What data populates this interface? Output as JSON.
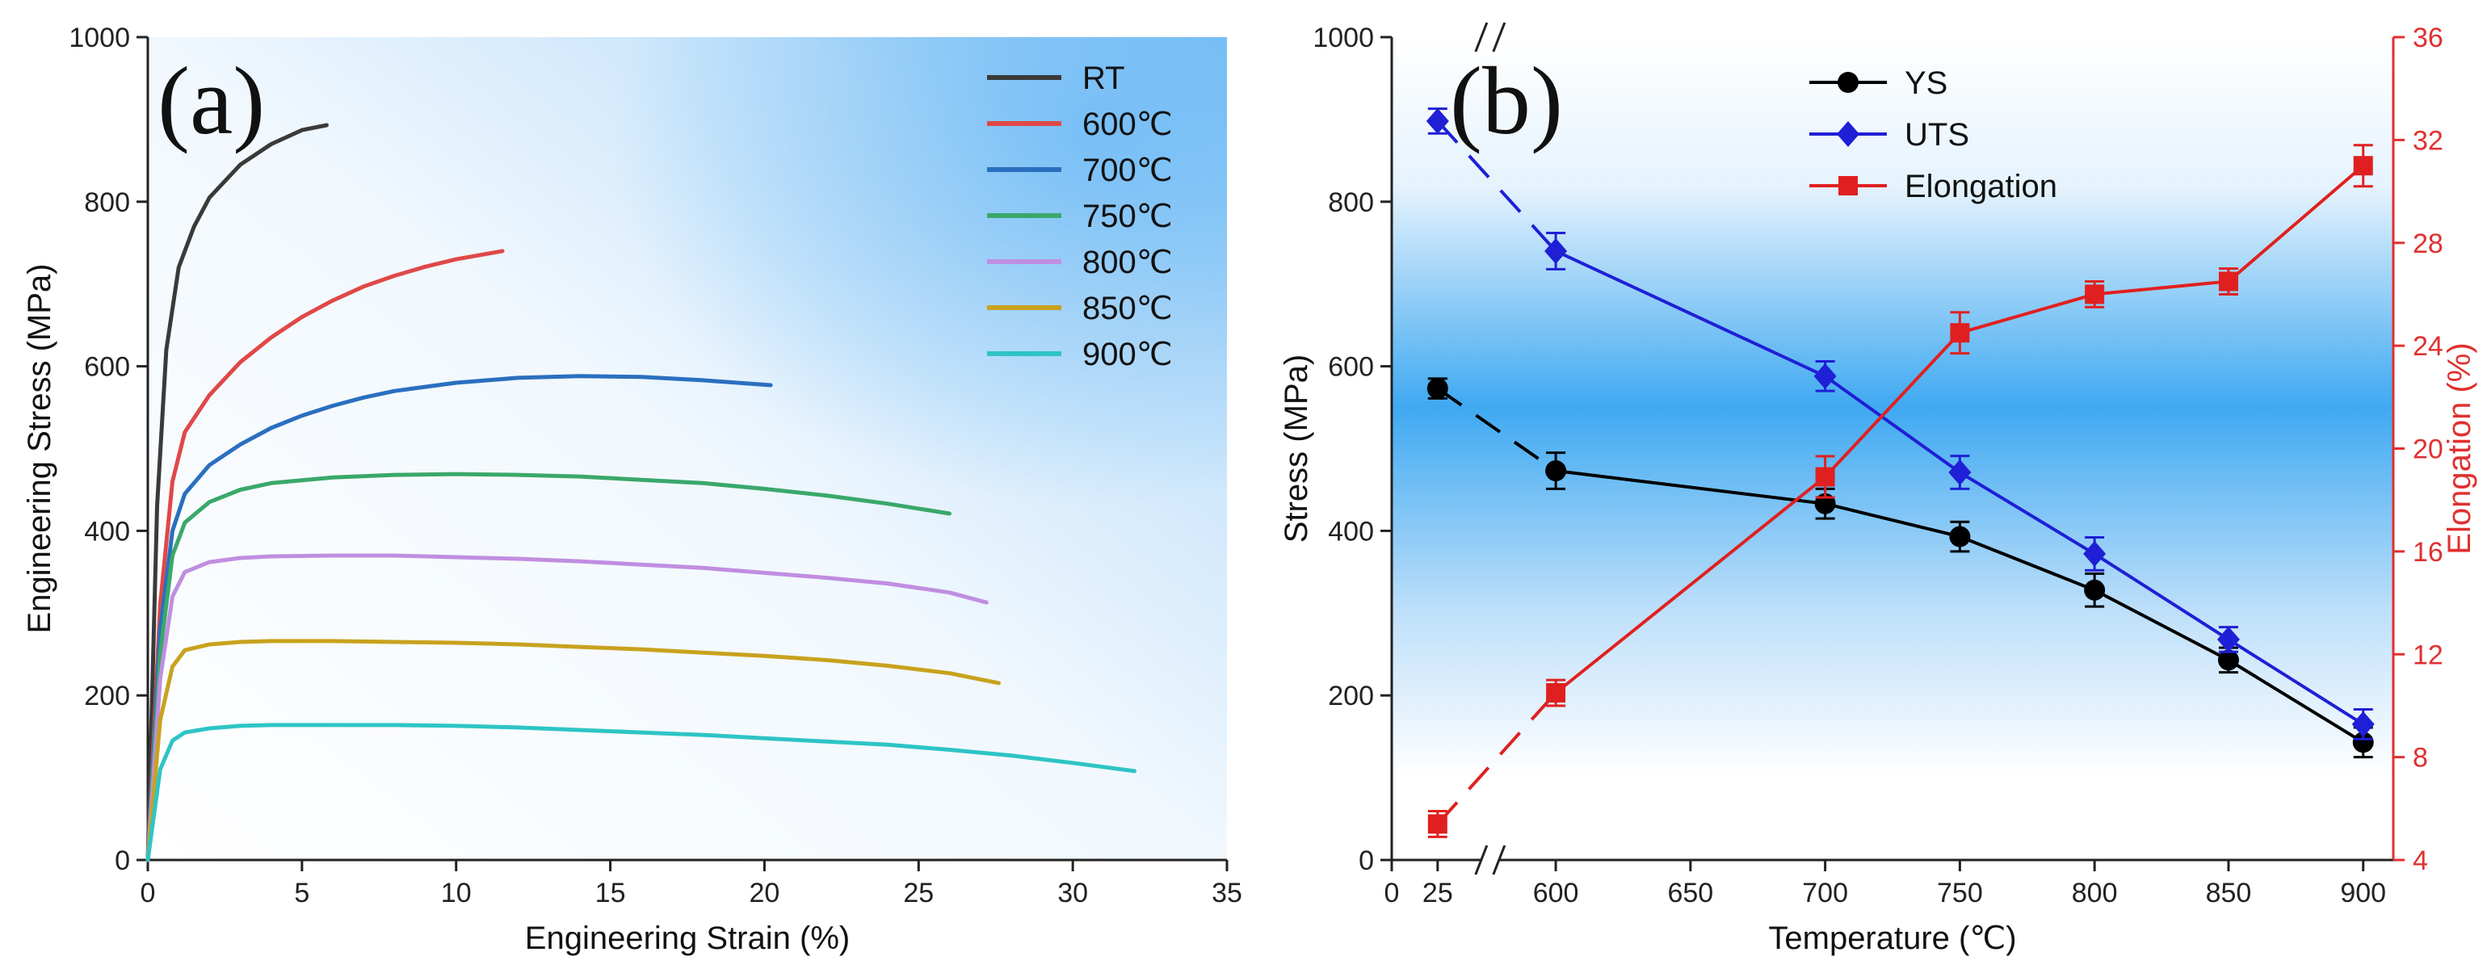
{
  "chart_data": [
    {
      "type": "line",
      "panel_label": "(a)",
      "xlabel": "Engineering Strain (%)",
      "ylabel": "Engineering Stress (MPa)",
      "xlim": [
        0,
        35
      ],
      "ylim": [
        0,
        1000
      ],
      "xticks": [
        0,
        5,
        10,
        15,
        20,
        25,
        30,
        35
      ],
      "yticks": [
        0,
        200,
        400,
        600,
        800,
        1000
      ],
      "legend_position": "top-right",
      "series": [
        {
          "name": "RT",
          "color": "#3a3a3a",
          "x": [
            0,
            0.3,
            0.6,
            1.0,
            1.5,
            2.0,
            3.0,
            4.0,
            5.0,
            5.8
          ],
          "y": [
            0,
            430,
            620,
            720,
            770,
            805,
            845,
            870,
            887,
            893
          ]
        },
        {
          "name": "600℃",
          "color": "#e04848",
          "x": [
            0,
            0.4,
            0.8,
            1.2,
            2.0,
            3.0,
            4.0,
            5.0,
            6.0,
            7.0,
            8.0,
            9.0,
            10.0,
            11.5
          ],
          "y": [
            0,
            310,
            460,
            520,
            565,
            605,
            635,
            660,
            680,
            697,
            710,
            721,
            730,
            740
          ]
        },
        {
          "name": "700℃",
          "color": "#2a6fbf",
          "x": [
            0,
            0.4,
            0.8,
            1.2,
            2.0,
            3.0,
            4.0,
            5.0,
            6.0,
            7.0,
            8.0,
            10.0,
            12.0,
            14.0,
            16.0,
            18.0,
            20.2
          ],
          "y": [
            0,
            280,
            400,
            445,
            480,
            505,
            525,
            540,
            552,
            562,
            570,
            580,
            586,
            588,
            587,
            583,
            577
          ]
        },
        {
          "name": "750℃",
          "color": "#3aa86a",
          "x": [
            0,
            0.4,
            0.8,
            1.2,
            2.0,
            3.0,
            4.0,
            6.0,
            8.0,
            10.0,
            12.0,
            14.0,
            16.0,
            18.0,
            20.0,
            22.0,
            24.0,
            26.0
          ],
          "y": [
            0,
            250,
            370,
            410,
            435,
            450,
            458,
            465,
            468,
            469,
            468,
            466,
            462,
            458,
            451,
            443,
            433,
            421
          ]
        },
        {
          "name": "800℃",
          "color": "#c08ee0",
          "x": [
            0,
            0.4,
            0.8,
            1.2,
            2.0,
            3.0,
            4.0,
            6.0,
            8.0,
            10.0,
            12.0,
            14.0,
            16.0,
            18.0,
            20.0,
            22.0,
            24.0,
            26.0,
            27.2
          ],
          "y": [
            0,
            220,
            320,
            350,
            362,
            367,
            369,
            370,
            370,
            368,
            366,
            363,
            359,
            355,
            349,
            343,
            336,
            325,
            313
          ]
        },
        {
          "name": "850℃",
          "color": "#c8a21e",
          "x": [
            0,
            0.4,
            0.8,
            1.2,
            2.0,
            3.0,
            4.0,
            6.0,
            8.0,
            10.0,
            12.0,
            14.0,
            16.0,
            18.0,
            20.0,
            22.0,
            24.0,
            26.0,
            27.6
          ],
          "y": [
            0,
            170,
            235,
            255,
            262,
            265,
            266,
            266,
            265,
            264,
            262,
            259,
            256,
            252,
            248,
            243,
            236,
            227,
            215
          ]
        },
        {
          "name": "900℃",
          "color": "#2ec4c4",
          "x": [
            0,
            0.4,
            0.8,
            1.2,
            2.0,
            3.0,
            4.0,
            6.0,
            8.0,
            10.0,
            12.0,
            14.0,
            16.0,
            18.0,
            20.0,
            22.0,
            24.0,
            26.0,
            28.0,
            30.0,
            32.0
          ],
          "y": [
            0,
            110,
            145,
            155,
            160,
            163,
            164,
            164,
            164,
            163,
            161,
            158,
            155,
            152,
            148,
            144,
            140,
            134,
            127,
            118,
            108
          ]
        }
      ]
    },
    {
      "type": "line",
      "panel_label": "(b)",
      "xlabel": "Temperature (℃)",
      "ylabel": "Stress (MPa)",
      "ylabel_right": "Elongation (%)",
      "right_axis_color": "#e03030",
      "x_tick_labels": [
        "0",
        "25",
        "600",
        "650",
        "700",
        "750",
        "800",
        "850",
        "900"
      ],
      "x_axis_break": "between 25 and 600",
      "categories": [
        "25",
        "600",
        "700",
        "750",
        "800",
        "850",
        "900"
      ],
      "ylim": [
        0,
        1000
      ],
      "yticks": [
        0,
        200,
        400,
        600,
        800,
        1000
      ],
      "ylim_right": [
        4,
        36
      ],
      "yticks_right": [
        4,
        8,
        12,
        16,
        20,
        24,
        28,
        32,
        36
      ],
      "legend_position": "top-center",
      "series": [
        {
          "name": "YS",
          "axis": "left",
          "color": "#000000",
          "marker": "circle",
          "x": [
            25,
            600,
            700,
            750,
            800,
            850,
            900
          ],
          "values": [
            573,
            473,
            433,
            393,
            328,
            243,
            143
          ],
          "errors": [
            12,
            22,
            18,
            18,
            20,
            15,
            18
          ]
        },
        {
          "name": "UTS",
          "axis": "left",
          "color": "#1f1fd6",
          "marker": "diamond",
          "x": [
            25,
            600,
            700,
            750,
            800,
            850,
            900
          ],
          "values": [
            898,
            740,
            588,
            471,
            372,
            268,
            165
          ],
          "errors": [
            15,
            22,
            18,
            20,
            20,
            15,
            18
          ]
        },
        {
          "name": "Elongation",
          "axis": "right",
          "color": "#e02020",
          "marker": "square",
          "x": [
            25,
            600,
            700,
            750,
            800,
            850,
            900
          ],
          "values": [
            5.4,
            10.5,
            18.9,
            24.5,
            26.0,
            26.5,
            31.0
          ],
          "errors": [
            0.5,
            0.5,
            0.8,
            0.8,
            0.5,
            0.5,
            0.8
          ]
        }
      ]
    }
  ]
}
